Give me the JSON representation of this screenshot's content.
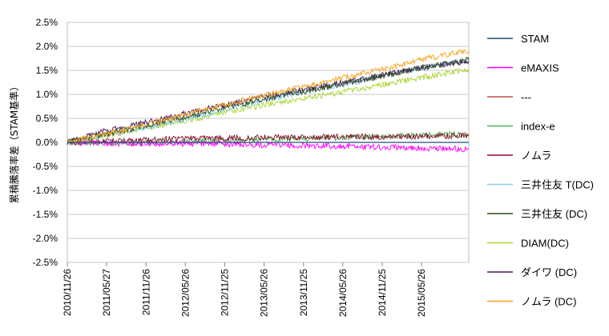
{
  "chart_data": {
    "type": "line",
    "ylabel": "累積騰落率差（STAM基準）",
    "xlabel": "",
    "ylim": [
      -0.025,
      0.025
    ],
    "y_ticks": [
      "2.5%",
      "2.0%",
      "1.5%",
      "1.0%",
      "0.5%",
      "0.0%",
      "-0.5%",
      "-1.0%",
      "-1.5%",
      "-2.0%",
      "-2.5%"
    ],
    "x_ticks": [
      "2010/11/26",
      "2011/05/27",
      "2011/11/26",
      "2012/05/26",
      "2012/11/25",
      "2013/05/26",
      "2013/11/25",
      "2014/05/26",
      "2014/11/25",
      "2015/05/26"
    ],
    "x_range": [
      "2010/11/26",
      "2015/12/31"
    ],
    "grid": "horizontal",
    "legend_position": "right",
    "series": [
      {
        "name": "STAM",
        "color": "#1f4e79",
        "x": [
          "2010/11/26",
          "2015/12/31"
        ],
        "values": [
          0.0,
          0.0
        ]
      },
      {
        "name": "eMAXIS",
        "color": "#ff00ff",
        "x": [
          "2010/11/26",
          "2011/05/27",
          "2011/11/26",
          "2012/05/26",
          "2012/11/25",
          "2013/05/26",
          "2013/11/25",
          "2014/05/26",
          "2014/11/25",
          "2015/05/26",
          "2015/12/31"
        ],
        "values": [
          0.0,
          -0.0002,
          -0.0003,
          -0.0002,
          -0.0003,
          -0.0005,
          -0.0006,
          -0.0008,
          -0.001,
          -0.0012,
          -0.0014
        ]
      },
      {
        "name": "---",
        "color": "#c0504d",
        "x": [],
        "values": []
      },
      {
        "name": "index-e",
        "color": "#4caf50",
        "x": [
          "2010/11/26",
          "2011/05/27",
          "2011/11/26",
          "2012/05/26",
          "2012/11/25",
          "2013/05/26",
          "2013/11/25",
          "2014/05/26",
          "2014/11/25",
          "2015/05/26",
          "2015/12/31"
        ],
        "values": [
          0.0,
          -0.0002,
          -0.0001,
          0.0002,
          0.0004,
          0.0006,
          0.0008,
          0.001,
          0.0012,
          0.0015,
          0.0018
        ]
      },
      {
        "name": "ノムラ",
        "color": "#8b0a2b",
        "x": [
          "2010/11/26",
          "2011/05/27",
          "2011/11/26",
          "2012/05/26",
          "2012/11/25",
          "2013/05/26",
          "2013/11/25",
          "2014/05/26",
          "2014/11/25",
          "2015/05/26",
          "2015/12/31"
        ],
        "values": [
          0.0,
          0.0003,
          0.0005,
          0.0008,
          0.0009,
          0.001,
          0.0011,
          0.0012,
          0.0012,
          0.0013,
          0.0014
        ]
      },
      {
        "name": "三井住友 T(DC)",
        "color": "#87ceeb",
        "x": [
          "2010/11/26",
          "2011/05/27",
          "2011/11/26",
          "2012/05/26",
          "2012/11/25",
          "2013/05/26",
          "2013/11/25",
          "2014/05/26",
          "2014/11/25",
          "2015/05/26",
          "2015/12/31"
        ],
        "values": [
          0.0,
          0.0015,
          0.003,
          0.0048,
          0.0068,
          0.0088,
          0.0105,
          0.012,
          0.0138,
          0.0155,
          0.0172
        ]
      },
      {
        "name": "三井住友 (DC)",
        "color": "#2d4a1e",
        "x": [
          "2010/11/26",
          "2011/05/27",
          "2011/11/26",
          "2012/05/26",
          "2012/11/25",
          "2013/05/26",
          "2013/11/25",
          "2014/05/26",
          "2014/11/25",
          "2015/05/26",
          "2015/12/31"
        ],
        "values": [
          0.0,
          0.0017,
          0.0035,
          0.0053,
          0.0072,
          0.009,
          0.0106,
          0.0122,
          0.0138,
          0.0155,
          0.0172
        ]
      },
      {
        "name": "DIAM(DC)",
        "color": "#a8d42a",
        "x": [
          "2010/11/26",
          "2011/05/27",
          "2011/11/26",
          "2012/05/26",
          "2012/11/25",
          "2013/05/26",
          "2013/11/25",
          "2014/05/26",
          "2014/11/25",
          "2015/05/26",
          "2015/12/31"
        ],
        "values": [
          0.0,
          0.0015,
          0.003,
          0.0045,
          0.0062,
          0.0078,
          0.0092,
          0.0105,
          0.012,
          0.0135,
          0.0152
        ]
      },
      {
        "name": "ダイワ (DC)",
        "color": "#4b1a5e",
        "x": [
          "2010/11/26",
          "2011/05/27",
          "2011/11/26",
          "2012/05/26",
          "2012/11/25",
          "2013/05/26",
          "2013/11/25",
          "2014/05/26",
          "2014/11/25",
          "2015/05/26",
          "2015/12/31"
        ],
        "values": [
          0.0,
          0.0025,
          0.0042,
          0.006,
          0.0078,
          0.0095,
          0.011,
          0.0125,
          0.014,
          0.0155,
          0.017
        ]
      },
      {
        "name": "ノムラ (DC)",
        "color": "#f5a623",
        "x": [
          "2010/11/26",
          "2011/05/27",
          "2011/11/26",
          "2012/05/26",
          "2012/11/25",
          "2013/05/26",
          "2013/11/25",
          "2014/05/26",
          "2014/11/25",
          "2015/05/26",
          "2015/12/31"
        ],
        "values": [
          0.0,
          0.0018,
          0.0038,
          0.0058,
          0.0078,
          0.0098,
          0.0116,
          0.0134,
          0.0152,
          0.0172,
          0.0192
        ]
      }
    ]
  }
}
